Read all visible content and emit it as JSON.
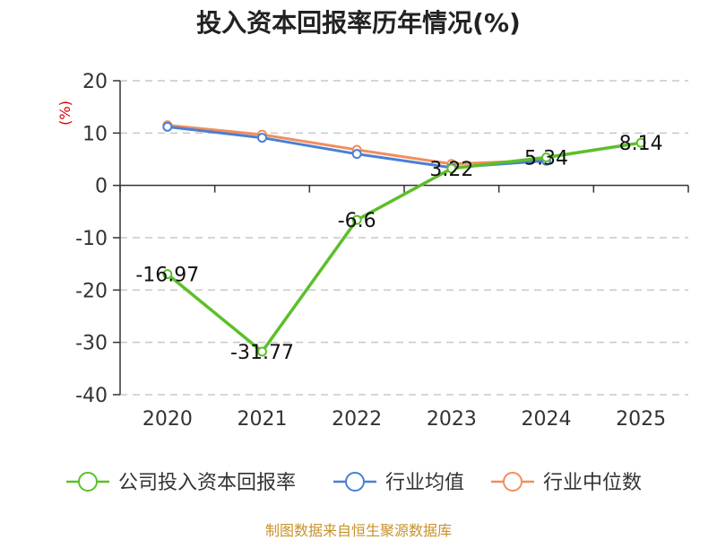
{
  "chart_data": {
    "type": "line",
    "title": "投入资本回报率历年情况(%)",
    "ylabel": "(%)",
    "xlabel": "",
    "categories": [
      "2020",
      "2021",
      "2022",
      "2023",
      "2024",
      "2025"
    ],
    "ylim": [
      -40,
      20
    ],
    "yticks": [
      20,
      10,
      0,
      -10,
      -20,
      -30,
      -40
    ],
    "grid": true,
    "legend_position": "bottom",
    "series": [
      {
        "name": "公司投入资本回报率",
        "color": "#5cbf2a",
        "values": [
          -16.97,
          -31.77,
          -6.6,
          3.22,
          5.34,
          8.14
        ],
        "labels": [
          "-16.97",
          "-31.77",
          "-6.6",
          "3.22",
          "5.34",
          "8.14"
        ]
      },
      {
        "name": "行业均值",
        "color": "#4a7fd6",
        "values": [
          11.2,
          9.1,
          6.0,
          3.4,
          4.7,
          null
        ]
      },
      {
        "name": "行业中位数",
        "color": "#f28e5c",
        "values": [
          11.5,
          9.7,
          6.8,
          4.1,
          4.8,
          null
        ]
      }
    ]
  },
  "footer": {
    "source": "制图数据来自恒生聚源数据库"
  }
}
